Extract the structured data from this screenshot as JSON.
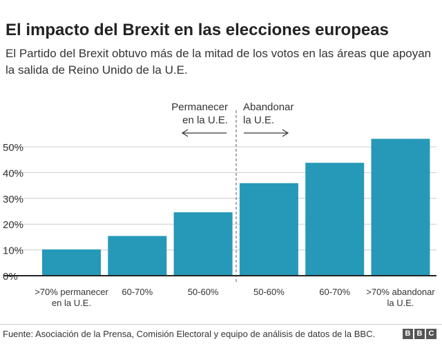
{
  "title": "El impacto del Brexit en las elecciones europeas",
  "subtitle": "El Partido del Brexit obtuvo más de la mitad de los votos en las áreas que apoyan la salida de Reino Unido de la U.E.",
  "annotations": {
    "left_line1": "Permanecer",
    "left_line2": "en la U.E.",
    "right_line1": "Abandonar",
    "right_line2": "la U.E."
  },
  "footer": {
    "source": "Fuente: Asociación de la Prensa, Comisión Electoral y equipo de análisis de datos de la BBC.",
    "logo": "BBC"
  },
  "colors": {
    "bar": "#2699b8",
    "grid": "#cccccc",
    "axis": "#222222"
  },
  "chart_data": {
    "type": "bar",
    "title": "El impacto del Brexit en las elecciones europeas",
    "categories": [
      ">70% permanecer en la  U.E.",
      "60-70%",
      "50-60%",
      "50-60%",
      "60-70%",
      ">70% abandonar la  U.E."
    ],
    "category_lines": [
      [
        ">70% permanecer",
        "en la  U.E."
      ],
      [
        "60-70%"
      ],
      [
        "50-60%"
      ],
      [
        "50-60%"
      ],
      [
        "60-70%"
      ],
      [
        ">70% abandonar",
        "la  U.E."
      ]
    ],
    "values": [
      10.2,
      15.4,
      24.6,
      35.9,
      43.8,
      53.1
    ],
    "ylabel": "",
    "xlabel": "",
    "ylim": [
      0,
      55
    ],
    "yticks": [
      0,
      10,
      20,
      30,
      40,
      50
    ],
    "ytick_labels": [
      "0%",
      "10%",
      "20%",
      "30%",
      "40%",
      "50%"
    ],
    "grid": true
  }
}
